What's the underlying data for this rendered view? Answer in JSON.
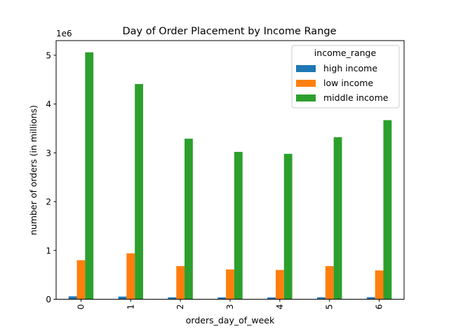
{
  "chart_data": {
    "type": "bar",
    "title": "Day of Order Placement by Income Range",
    "xlabel": "orders_day_of_week",
    "ylabel": "number of orders (in millions)",
    "y_offset_label": "1e6",
    "categories": [
      "0",
      "1",
      "2",
      "3",
      "4",
      "5",
      "6"
    ],
    "yticks": [
      0,
      1,
      2,
      3,
      4,
      5
    ],
    "ylim": [
      0,
      5300000
    ],
    "grid": false,
    "legend": {
      "title": "income_range",
      "placement": "top-right"
    },
    "series": [
      {
        "name": "high income",
        "color": "#1f77b4",
        "values": [
          60000,
          55000,
          40000,
          38000,
          38000,
          40000,
          42000
        ]
      },
      {
        "name": "low income",
        "color": "#ff7f0e",
        "values": [
          800000,
          940000,
          680000,
          610000,
          600000,
          680000,
          590000
        ]
      },
      {
        "name": "middle income",
        "color": "#2ca02c",
        "values": [
          5060000,
          4410000,
          3290000,
          3020000,
          2980000,
          3320000,
          3670000
        ]
      }
    ]
  }
}
